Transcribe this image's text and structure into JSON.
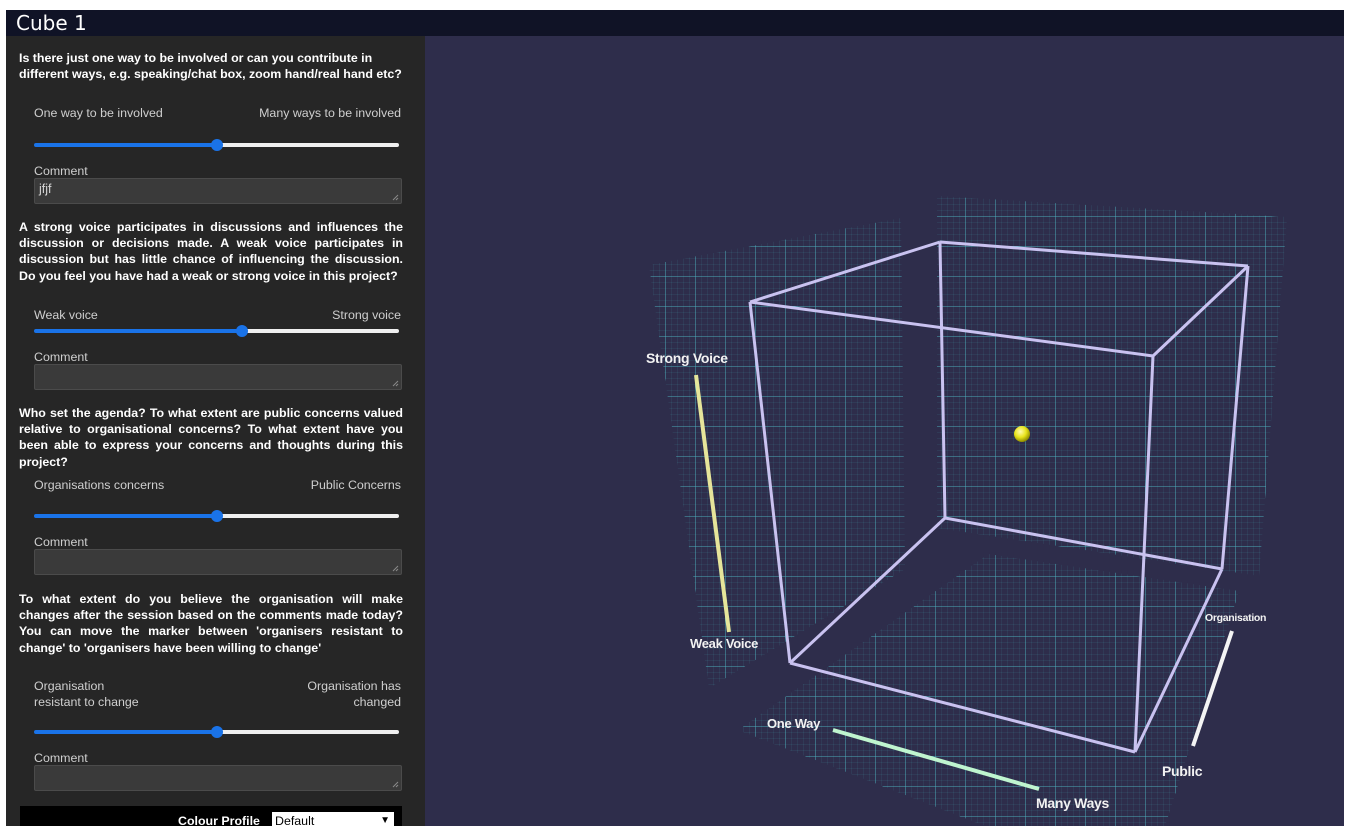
{
  "window": {
    "title": "Cube 1"
  },
  "questions": [
    {
      "text": "Is there just one way to be involved or can you contribute in different ways, e.g. speaking/chat box, zoom hand/real hand etc?",
      "min_label": "One way to be involved",
      "max_label": "Many ways to be involved",
      "value": 0.5,
      "comment_label": "Comment",
      "comment_value": "jfjf"
    },
    {
      "text": "A strong voice participates in discussions and influences the discussion or decisions made. A weak voice participates in discussion but has little chance of influencing the discussion. Do you feel you have had a weak or strong voice in this project?",
      "min_label": "Weak voice",
      "max_label": "Strong voice",
      "value": 0.57,
      "comment_label": "Comment",
      "comment_value": ""
    },
    {
      "text": "Who set the agenda? To what extent are public concerns valued relative to organisational concerns? To what extent have you been able to express your concerns and thoughts during this project?",
      "min_label": "Organisations concerns",
      "max_label": "Public Concerns",
      "value": 0.5,
      "comment_label": "Comment",
      "comment_value": ""
    },
    {
      "text": "To what extent do you believe the organisation will make changes after the session based on the comments made today? You can move the marker between 'organisers resistant to change' to 'organisers have been willing to change'",
      "min_label": "Organisation resistant to change",
      "max_label": "Organisation has changed",
      "value": 0.5,
      "comment_label": "Comment",
      "comment_value": ""
    }
  ],
  "footer": {
    "colour_profile_label": "Colour Profile",
    "colour_profile_value": "Default"
  },
  "cube": {
    "axis_labels": {
      "strong_voice": "Strong Voice",
      "weak_voice": "Weak Voice",
      "one_way": "One Way",
      "many_ways": "Many Ways",
      "organisation": "Organisation",
      "public": "Public"
    },
    "colors": {
      "background": "#2e2d4b",
      "grid": "#4fd1d9",
      "cube_edges": "#c9c2f0",
      "marker": "#e8e41c",
      "voice_axis": "#e6e59a",
      "way_axis": "#bff5cf",
      "public_axis": "#f4f4f4"
    }
  }
}
